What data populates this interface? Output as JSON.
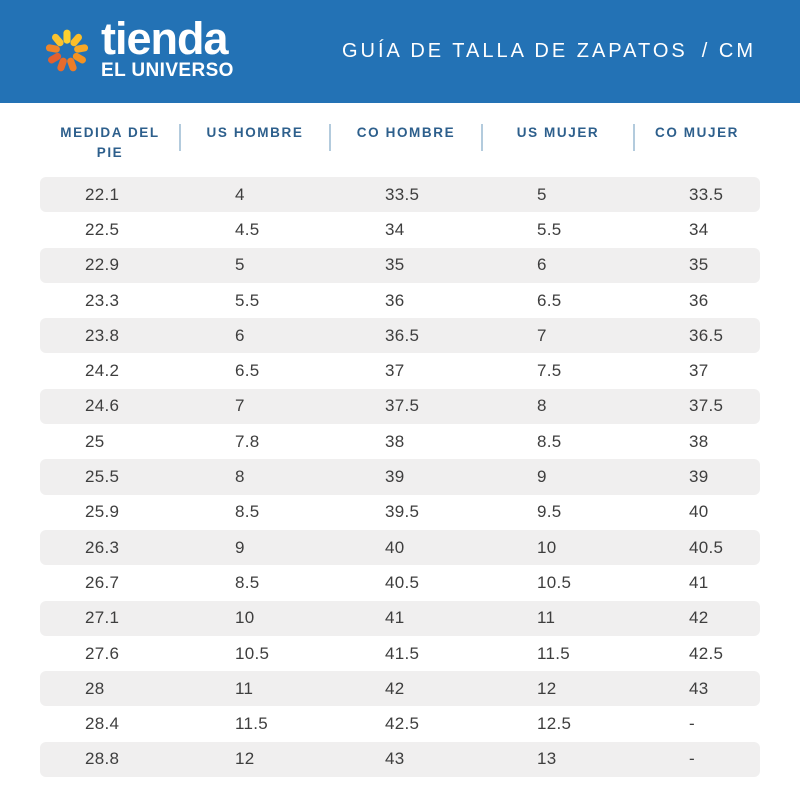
{
  "brand": {
    "name_top": "tienda",
    "name_bottom": "EL UNIVERSO",
    "icon": "sunburst-icon",
    "icon_petal_colors": [
      "#ffd12e",
      "#fcbe29",
      "#f9a825",
      "#f39222",
      "#ee7d27",
      "#e76b2c",
      "#e2602f",
      "#ef8428",
      "#fbc32d"
    ]
  },
  "header": {
    "title": "GUÍA DE TALLA DE ZAPATOS",
    "unit": "/ CM",
    "background_color": "#2372b5",
    "text_color": "#ffffff"
  },
  "table": {
    "columns": [
      "MEDIDA DEL PIE",
      "US HOMBRE",
      "CO HOMBRE",
      "US MUJER",
      "CO MUJER"
    ],
    "rows": [
      [
        "22.1",
        "4",
        "33.5",
        "5",
        "33.5"
      ],
      [
        "22.5",
        "4.5",
        "34",
        "5.5",
        "34"
      ],
      [
        "22.9",
        "5",
        "35",
        "6",
        "35"
      ],
      [
        "23.3",
        "5.5",
        "36",
        "6.5",
        "36"
      ],
      [
        "23.8",
        "6",
        "36.5",
        "7",
        "36.5"
      ],
      [
        "24.2",
        "6.5",
        "37",
        "7.5",
        "37"
      ],
      [
        "24.6",
        "7",
        "37.5",
        "8",
        "37.5"
      ],
      [
        "25",
        "7.8",
        "38",
        "8.5",
        "38"
      ],
      [
        "25.5",
        "8",
        "39",
        "9",
        "39"
      ],
      [
        "25.9",
        "8.5",
        "39.5",
        "9.5",
        "40"
      ],
      [
        "26.3",
        "9",
        "40",
        "10",
        "40.5"
      ],
      [
        "26.7",
        "8.5",
        "40.5",
        "10.5",
        "41"
      ],
      [
        "27.1",
        "10",
        "41",
        "11",
        "42"
      ],
      [
        "27.6",
        "10.5",
        "41.5",
        "11.5",
        "42.5"
      ],
      [
        "28",
        "11",
        "42",
        "12",
        "43"
      ],
      [
        "28.4",
        "11.5",
        "42.5",
        "12.5",
        "-"
      ],
      [
        "28.8",
        "12",
        "43",
        "13",
        "-"
      ]
    ],
    "zebra_color": "#f0efef",
    "header_text_color": "#2d5f8c",
    "divider_color": "#b3cbdd",
    "cell_text_color": "#3e3e3e"
  }
}
